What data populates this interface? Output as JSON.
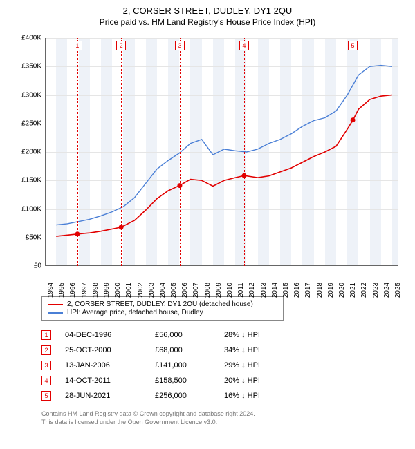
{
  "title": "2, CORSER STREET, DUDLEY, DY1 2QU",
  "subtitle": "Price paid vs. HM Land Registry's House Price Index (HPI)",
  "chart": {
    "type": "line",
    "background_color": "#ffffff",
    "band_color": "#eef2f8",
    "grid_color": "#e5e5e5",
    "axis_color": "#666666",
    "xlim": [
      1994,
      2025.5
    ],
    "ylim": [
      0,
      400000
    ],
    "ytick_step": 50000,
    "ytick_labels": [
      "£0",
      "£50K",
      "£100K",
      "£150K",
      "£200K",
      "£250K",
      "£300K",
      "£350K",
      "£400K"
    ],
    "xtick_years": [
      1994,
      1995,
      1996,
      1997,
      1998,
      1999,
      2000,
      2001,
      2002,
      2003,
      2004,
      2005,
      2006,
      2007,
      2008,
      2009,
      2010,
      2011,
      2012,
      2013,
      2014,
      2015,
      2016,
      2017,
      2018,
      2019,
      2020,
      2021,
      2022,
      2023,
      2024,
      2025
    ],
    "series": [
      {
        "name": "property",
        "label": "2, CORSER STREET, DUDLEY, DY1 2QU (detached house)",
        "color": "#e20000",
        "width": 1.6,
        "points": [
          [
            1995.0,
            52000
          ],
          [
            1996.9,
            56000
          ],
          [
            1998.0,
            58000
          ],
          [
            1999.0,
            61000
          ],
          [
            2000.8,
            68000
          ],
          [
            2002.0,
            80000
          ],
          [
            2003.0,
            98000
          ],
          [
            2004.0,
            118000
          ],
          [
            2005.0,
            132000
          ],
          [
            2006.0,
            141000
          ],
          [
            2007.0,
            152000
          ],
          [
            2008.0,
            150000
          ],
          [
            2009.0,
            140000
          ],
          [
            2010.0,
            150000
          ],
          [
            2011.0,
            155000
          ],
          [
            2011.8,
            158500
          ],
          [
            2013.0,
            155000
          ],
          [
            2014.0,
            158000
          ],
          [
            2015.0,
            165000
          ],
          [
            2016.0,
            172000
          ],
          [
            2017.0,
            182000
          ],
          [
            2018.0,
            192000
          ],
          [
            2019.0,
            200000
          ],
          [
            2020.0,
            210000
          ],
          [
            2021.0,
            240000
          ],
          [
            2021.5,
            256000
          ],
          [
            2022.0,
            275000
          ],
          [
            2023.0,
            292000
          ],
          [
            2024.0,
            298000
          ],
          [
            2025.0,
            300000
          ]
        ]
      },
      {
        "name": "hpi",
        "label": "HPI: Average price, detached house, Dudley",
        "color": "#4a7fd6",
        "width": 1.4,
        "points": [
          [
            1995.0,
            72000
          ],
          [
            1996.0,
            74000
          ],
          [
            1997.0,
            78000
          ],
          [
            1998.0,
            82000
          ],
          [
            1999.0,
            88000
          ],
          [
            2000.0,
            95000
          ],
          [
            2001.0,
            104000
          ],
          [
            2002.0,
            120000
          ],
          [
            2003.0,
            145000
          ],
          [
            2004.0,
            170000
          ],
          [
            2005.0,
            185000
          ],
          [
            2006.0,
            198000
          ],
          [
            2007.0,
            215000
          ],
          [
            2008.0,
            222000
          ],
          [
            2009.0,
            195000
          ],
          [
            2010.0,
            205000
          ],
          [
            2011.0,
            202000
          ],
          [
            2012.0,
            200000
          ],
          [
            2013.0,
            205000
          ],
          [
            2014.0,
            215000
          ],
          [
            2015.0,
            222000
          ],
          [
            2016.0,
            232000
          ],
          [
            2017.0,
            245000
          ],
          [
            2018.0,
            255000
          ],
          [
            2019.0,
            260000
          ],
          [
            2020.0,
            272000
          ],
          [
            2021.0,
            300000
          ],
          [
            2022.0,
            335000
          ],
          [
            2023.0,
            350000
          ],
          [
            2024.0,
            352000
          ],
          [
            2025.0,
            350000
          ]
        ]
      }
    ],
    "sale_markers": [
      {
        "n": "1",
        "year": 1996.9,
        "color": "#e20000"
      },
      {
        "n": "2",
        "year": 2000.8,
        "color": "#e20000"
      },
      {
        "n": "3",
        "year": 2006.04,
        "color": "#e20000"
      },
      {
        "n": "4",
        "year": 2011.79,
        "color": "#e20000"
      },
      {
        "n": "5",
        "year": 2021.49,
        "color": "#e20000"
      }
    ],
    "sale_dots": [
      {
        "year": 1996.9,
        "value": 56000
      },
      {
        "year": 2000.8,
        "value": 68000
      },
      {
        "year": 2006.04,
        "value": 141000
      },
      {
        "year": 2011.79,
        "value": 158500
      },
      {
        "year": 2021.49,
        "value": 256000
      }
    ]
  },
  "legend": {
    "items": [
      {
        "color": "#e20000",
        "label": "2, CORSER STREET, DUDLEY, DY1 2QU (detached house)"
      },
      {
        "color": "#4a7fd6",
        "label": "HPI: Average price, detached house, Dudley"
      }
    ]
  },
  "sales": [
    {
      "n": "1",
      "date": "04-DEC-1996",
      "price": "£56,000",
      "diff": "28% ↓ HPI",
      "color": "#e20000"
    },
    {
      "n": "2",
      "date": "25-OCT-2000",
      "price": "£68,000",
      "diff": "34% ↓ HPI",
      "color": "#e20000"
    },
    {
      "n": "3",
      "date": "13-JAN-2006",
      "price": "£141,000",
      "diff": "29% ↓ HPI",
      "color": "#e20000"
    },
    {
      "n": "4",
      "date": "14-OCT-2011",
      "price": "£158,500",
      "diff": "20% ↓ HPI",
      "color": "#e20000"
    },
    {
      "n": "5",
      "date": "28-JUN-2021",
      "price": "£256,000",
      "diff": "16% ↓ HPI",
      "color": "#e20000"
    }
  ],
  "footnote": {
    "line1": "Contains HM Land Registry data © Crown copyright and database right 2024.",
    "line2": "This data is licensed under the Open Government Licence v3.0."
  }
}
